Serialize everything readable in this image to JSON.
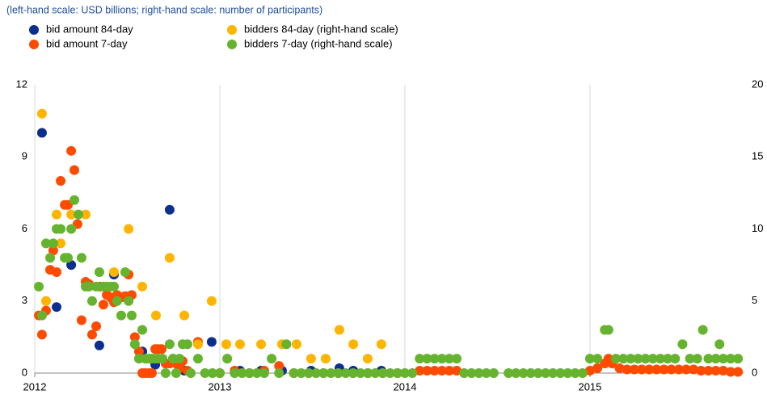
{
  "chart_data": {
    "type": "scatter",
    "subtitle": "(left-hand scale: USD billions; right-hand scale: number of participants)",
    "xlim": [
      2012,
      2015.83
    ],
    "xticks": [
      2012,
      2013,
      2014,
      2015
    ],
    "ylim": [
      0,
      12
    ],
    "yticks": [
      0,
      3,
      6,
      9,
      12
    ],
    "y2lim": [
      0,
      20
    ],
    "y2ticks": [
      0,
      5,
      10,
      15,
      20
    ],
    "grid": true,
    "series": [
      {
        "name": "bid amount 84-day",
        "color": "#0a2f8f",
        "x": [
          2012.039,
          2012.118,
          2012.197,
          2012.349,
          2012.428,
          2012.581,
          2012.651,
          2012.729,
          2012.808,
          2012.956,
          2013.109,
          2013.223,
          2013.336,
          2013.493,
          2013.646,
          2013.721,
          2013.873
        ],
        "values": [
          10,
          2.75,
          4.5,
          1.15,
          4.1,
          0.9,
          0.35,
          6.8,
          0.1,
          1.3,
          0.1,
          0.1,
          0.1,
          0.1,
          0.2,
          0.1,
          0.1
        ]
      },
      {
        "name": "bid amount 7-day",
        "color": "#ff4b00",
        "x": [
          2012.022,
          2012.039,
          2012.061,
          2012.083,
          2012.1,
          2012.118,
          2012.14,
          2012.162,
          2012.179,
          2012.197,
          2012.214,
          2012.231,
          2012.253,
          2012.275,
          2012.293,
          2012.31,
          2012.332,
          2012.354,
          2012.371,
          2012.389,
          2012.41,
          2012.428,
          2012.445,
          2012.467,
          2012.489,
          2012.507,
          2012.524,
          2012.541,
          2012.563,
          2012.581,
          2012.598,
          2012.616,
          2012.633,
          2012.651,
          2012.668,
          2012.686,
          2012.707,
          2012.729,
          2012.747,
          2012.764,
          2012.782,
          2012.799,
          2012.825,
          2012.882,
          2013.0,
          2013.08,
          2013.16,
          2013.24,
          2013.32,
          2013.4,
          2013.48,
          2013.56,
          2013.64,
          2013.72,
          2013.8,
          2013.88,
          2013.96,
          2014.08,
          2014.12,
          2014.16,
          2014.2,
          2014.24,
          2014.28,
          2015.0,
          2015.04,
          2015.08,
          2015.1,
          2015.12,
          2015.16,
          2015.2,
          2015.24,
          2015.28,
          2015.32,
          2015.36,
          2015.4,
          2015.44,
          2015.48,
          2015.52,
          2015.56,
          2015.6,
          2015.64,
          2015.68,
          2015.72,
          2015.76,
          2015.8
        ],
        "values": [
          2.4,
          1.6,
          2.6,
          4.3,
          5.1,
          4.2,
          8,
          7,
          7,
          9.25,
          8.45,
          6.2,
          2.2,
          3.8,
          3.7,
          1.6,
          1.95,
          3.6,
          2.85,
          3.25,
          3.15,
          2.95,
          3.25,
          3.15,
          3.2,
          4.1,
          3.25,
          1.5,
          0.9,
          0,
          0,
          0,
          0,
          1,
          1,
          1,
          0.4,
          0.4,
          0.6,
          0.4,
          0.2,
          0.5,
          0.1,
          1.3,
          0,
          0.1,
          0,
          0.1,
          0.3,
          0,
          0,
          0,
          0,
          0,
          0,
          0,
          0,
          0.1,
          0.1,
          0.1,
          0.1,
          0.1,
          0.1,
          0.1,
          0.2,
          0.4,
          0.6,
          0.4,
          0.2,
          0.15,
          0.15,
          0.15,
          0.15,
          0.15,
          0.15,
          0.15,
          0.15,
          0.15,
          0.15,
          0.1,
          0.1,
          0.1,
          0.1,
          0.05,
          0.05
        ]
      },
      {
        "name": "bidders 84-day (right-hand scale)",
        "color": "#ffb400",
        "axis": "y2",
        "x": [
          2012.039,
          2012.061,
          2012.118,
          2012.14,
          2012.197,
          2012.275,
          2012.428,
          2012.507,
          2012.581,
          2012.655,
          2012.729,
          2012.808,
          2012.882,
          2012.956,
          2013.035,
          2013.109,
          2013.223,
          2013.336,
          2013.415,
          2013.493,
          2013.572,
          2013.646,
          2013.721,
          2013.799,
          2013.873
        ],
        "values": [
          18,
          5,
          11,
          9,
          11,
          11,
          7,
          10,
          6,
          4,
          8,
          4,
          2,
          5,
          2,
          2,
          2,
          2,
          2,
          1,
          1,
          3,
          2,
          1,
          2
        ]
      },
      {
        "name": "bidders 7-day (right-hand scale)",
        "color": "#65b32e",
        "axis": "y2",
        "x": [
          2012.022,
          2012.039,
          2012.061,
          2012.083,
          2012.1,
          2012.118,
          2012.14,
          2012.162,
          2012.179,
          2012.197,
          2012.214,
          2012.236,
          2012.253,
          2012.275,
          2012.293,
          2012.31,
          2012.332,
          2012.349,
          2012.371,
          2012.389,
          2012.41,
          2012.428,
          2012.445,
          2012.467,
          2012.489,
          2012.507,
          2012.524,
          2012.541,
          2012.563,
          2012.581,
          2012.598,
          2012.616,
          2012.633,
          2012.651,
          2012.668,
          2012.69,
          2012.707,
          2012.729,
          2012.747,
          2012.764,
          2012.782,
          2012.799,
          2012.825,
          2012.843,
          2012.882,
          2012.92,
          2012.96,
          2013.0,
          2013.04,
          2013.08,
          2013.12,
          2013.16,
          2013.2,
          2013.24,
          2013.28,
          2013.32,
          2013.36,
          2013.4,
          2013.44,
          2013.48,
          2013.52,
          2013.56,
          2013.6,
          2013.64,
          2013.68,
          2013.72,
          2013.76,
          2013.8,
          2013.84,
          2013.88,
          2013.92,
          2013.96,
          2014.0,
          2014.04,
          2014.08,
          2014.12,
          2014.16,
          2014.2,
          2014.24,
          2014.28,
          2014.32,
          2014.36,
          2014.4,
          2014.44,
          2014.48,
          2014.56,
          2014.6,
          2014.64,
          2014.68,
          2014.72,
          2014.76,
          2014.8,
          2014.84,
          2014.88,
          2014.92,
          2014.96,
          2015.0,
          2015.04,
          2015.08,
          2015.1,
          2015.14,
          2015.18,
          2015.22,
          2015.26,
          2015.3,
          2015.34,
          2015.38,
          2015.42,
          2015.46,
          2015.5,
          2015.54,
          2015.58,
          2015.61,
          2015.64,
          2015.68,
          2015.7,
          2015.72,
          2015.76,
          2015.8
        ],
        "values": [
          6,
          4,
          9,
          8,
          9,
          10,
          10,
          8,
          8,
          10,
          12,
          11,
          8,
          6,
          6,
          5,
          6,
          7,
          6,
          6,
          6,
          6,
          5,
          4,
          7,
          5,
          4,
          2,
          1,
          3,
          1,
          1,
          1,
          1,
          1,
          1,
          0,
          2,
          1,
          0,
          1,
          2,
          2,
          0,
          1,
          0,
          0,
          0,
          1,
          0,
          0,
          0,
          0,
          0,
          1,
          0,
          2,
          0,
          0,
          0,
          0,
          0,
          0,
          0,
          0,
          0,
          0,
          0,
          0,
          0,
          0,
          0,
          0,
          0,
          1,
          1,
          1,
          1,
          1,
          1,
          0,
          0,
          0,
          0,
          0,
          0,
          0,
          0,
          0,
          0,
          0,
          0,
          0,
          0,
          0,
          0,
          1,
          1,
          3,
          3,
          1,
          1,
          1,
          1,
          1,
          1,
          1,
          1,
          1,
          2,
          1,
          1,
          3,
          1,
          1,
          2,
          1,
          1,
          1
        ]
      }
    ]
  }
}
